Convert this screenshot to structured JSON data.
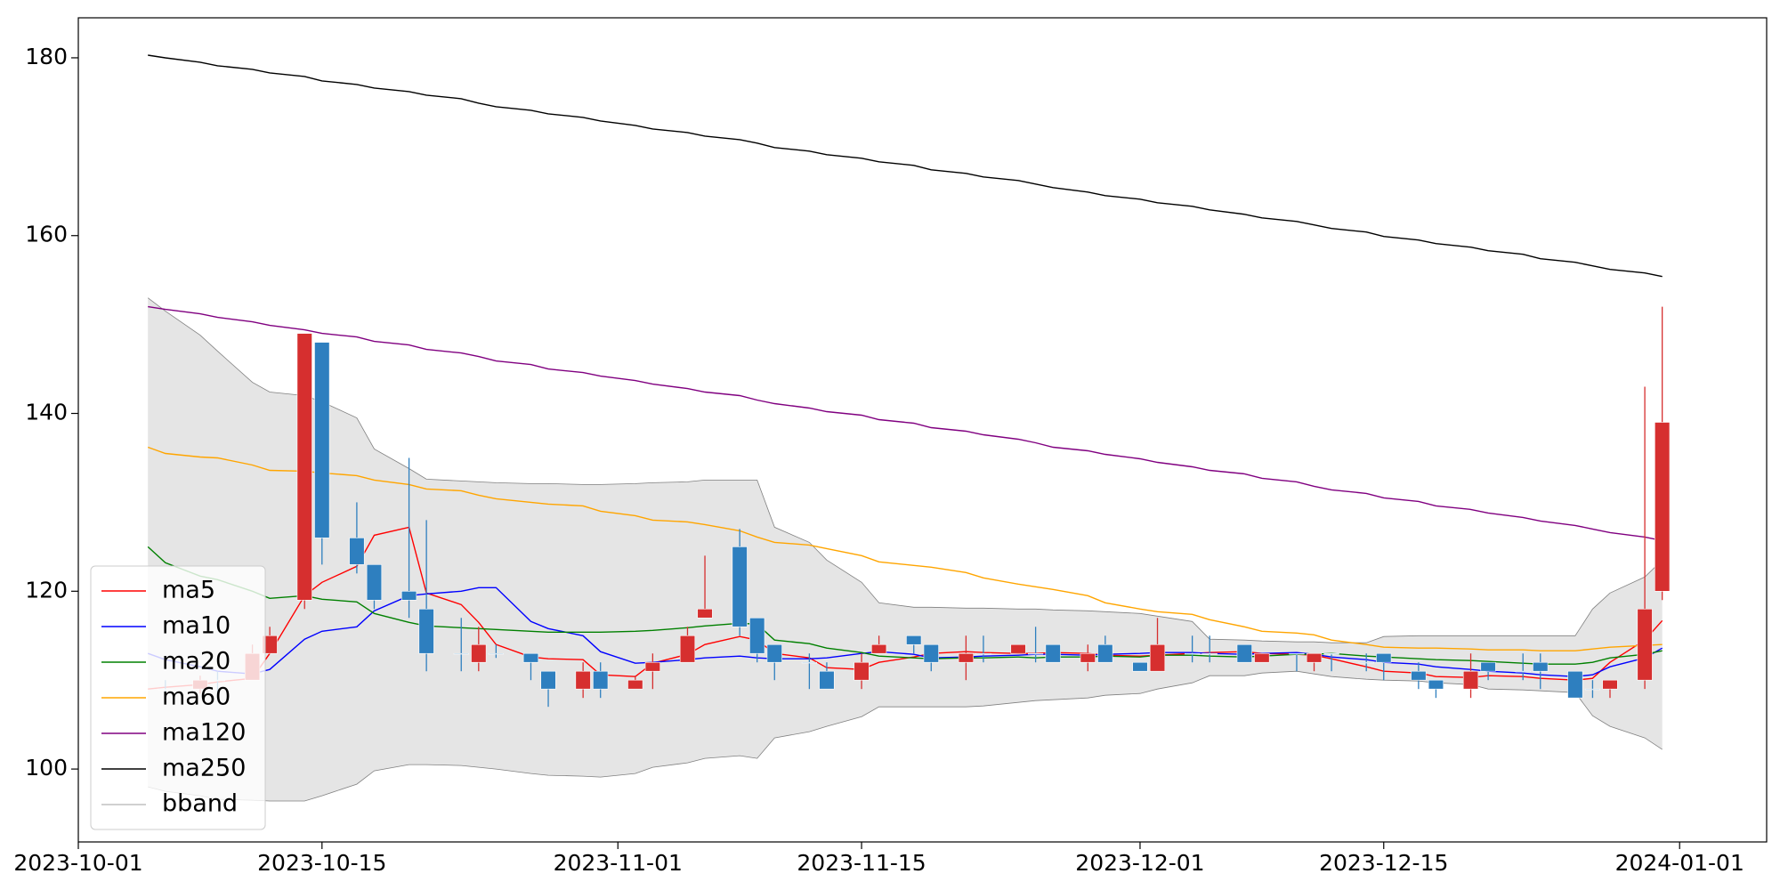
{
  "chart_data": {
    "type": "candlestick",
    "x": [
      "2023-10-05",
      "2023-10-06",
      "2023-10-08",
      "2023-10-09",
      "2023-10-11",
      "2023-10-12",
      "2023-10-14",
      "2023-10-15",
      "2023-10-17",
      "2023-10-18",
      "2023-10-20",
      "2023-10-21",
      "2023-10-23",
      "2023-10-24",
      "2023-10-25",
      "2023-10-27",
      "2023-10-28",
      "2023-10-30",
      "2023-10-31",
      "2023-11-02",
      "2023-11-03",
      "2023-11-05",
      "2023-11-06",
      "2023-11-08",
      "2023-11-09",
      "2023-11-10",
      "2023-11-12",
      "2023-11-13",
      "2023-11-15",
      "2023-11-16",
      "2023-11-18",
      "2023-11-19",
      "2023-11-21",
      "2023-11-22",
      "2023-11-24",
      "2023-11-25",
      "2023-11-26",
      "2023-11-28",
      "2023-11-29",
      "2023-12-01",
      "2023-12-02",
      "2023-12-04",
      "2023-12-05",
      "2023-12-07",
      "2023-12-08",
      "2023-12-10",
      "2023-12-11",
      "2023-12-12",
      "2023-12-14",
      "2023-12-15",
      "2023-12-17",
      "2023-12-18",
      "2023-12-20",
      "2023-12-21",
      "2023-12-23",
      "2023-12-24",
      "2023-12-26",
      "2023-12-27",
      "2023-12-28",
      "2023-12-30",
      "2023-12-31"
    ],
    "open": [
      null,
      109,
      109,
      110,
      110,
      113,
      119,
      148,
      126,
      123,
      120,
      118,
      113,
      112,
      113,
      113,
      111,
      109,
      111,
      109,
      111,
      112,
      117,
      125,
      117,
      114,
      112,
      111,
      110,
      113,
      115,
      114,
      112,
      113,
      113,
      113,
      114,
      112,
      114,
      112,
      111,
      113,
      113,
      114,
      112,
      113,
      112,
      113,
      112,
      113,
      111,
      110,
      109,
      112,
      111,
      112,
      111,
      109,
      109,
      110,
      120
    ],
    "high": [
      null,
      110,
      110.5,
      111,
      114,
      116,
      149,
      148,
      130,
      123,
      135,
      128,
      117,
      116,
      114,
      113,
      111,
      112,
      112,
      110.5,
      113,
      116,
      124,
      127,
      117,
      114,
      113,
      112,
      113,
      115,
      115,
      114,
      115,
      115,
      114,
      116,
      114,
      114,
      115,
      112,
      117,
      115,
      115,
      114,
      113,
      113,
      113,
      113,
      113,
      113,
      112,
      110,
      113,
      112,
      113,
      113,
      111,
      110,
      110,
      143,
      152
    ],
    "low": [
      null,
      108,
      108.5,
      108,
      110,
      113,
      118,
      123,
      122,
      118,
      117,
      111,
      111,
      111,
      112.5,
      110,
      107,
      108,
      108,
      109,
      109,
      112,
      117,
      115,
      112,
      110,
      109,
      109,
      109,
      113,
      113,
      111,
      110,
      112,
      113,
      112,
      112,
      111,
      112,
      111,
      111,
      112,
      112,
      112,
      112,
      111,
      111,
      111,
      111,
      110,
      109,
      108,
      108,
      110,
      110,
      109,
      108,
      108,
      108,
      109,
      119
    ],
    "close": [
      null,
      109,
      110,
      110,
      113,
      115,
      149,
      126,
      123,
      119,
      119,
      113,
      113,
      114,
      113,
      112,
      109,
      111,
      109,
      110,
      112,
      115,
      118,
      116,
      113,
      112,
      112,
      109,
      112,
      114,
      114,
      112,
      113,
      113,
      114,
      113,
      112,
      113,
      112,
      111,
      114,
      113,
      113,
      112,
      113,
      113,
      113,
      113,
      112,
      112,
      110,
      109,
      111,
      111,
      111,
      111,
      108,
      109,
      110,
      118,
      139
    ],
    "up_color": "#d62f2f",
    "down_color": "#2e7fbf",
    "series": [
      {
        "name": "ma5",
        "color": "#ff0000",
        "values": [
          109.0,
          109.2,
          109.5,
          109.8,
          110.2,
          113.0,
          119.5,
          121.0,
          122.8,
          126.3,
          127.2,
          119.8,
          118.5,
          116.5,
          114.0,
          112.6,
          112.4,
          112.3,
          110.6,
          110.4,
          111.9,
          112.9,
          114.0,
          114.9,
          114.5,
          113.0,
          112.5,
          111.4,
          111.2,
          112.0,
          112.6,
          113.0,
          113.2,
          113.1,
          113.0,
          113.0,
          113.1,
          113.0,
          112.8,
          112.7,
          112.8,
          113.0,
          113.1,
          113.2,
          113.0,
          112.9,
          112.8,
          112.4,
          111.5,
          111.0,
          110.8,
          110.4,
          110.3,
          110.5,
          110.4,
          110.2,
          110.0,
          110.2,
          112.0,
          114.5,
          116.7
        ]
      },
      {
        "name": "ma10",
        "color": "#0000ff",
        "values": [
          113.0,
          112.3,
          111.5,
          111.0,
          110.7,
          111.2,
          114.6,
          115.5,
          116.0,
          117.8,
          119.5,
          119.7,
          120.0,
          120.4,
          120.4,
          116.6,
          115.8,
          115.0,
          113.2,
          111.9,
          112.0,
          112.3,
          112.5,
          112.7,
          112.5,
          112.4,
          112.4,
          112.5,
          113.0,
          113.2,
          112.9,
          112.5,
          112.6,
          112.7,
          112.8,
          112.9,
          112.9,
          112.8,
          112.9,
          113.0,
          113.1,
          113.1,
          113.0,
          112.9,
          113.0,
          113.1,
          112.9,
          112.6,
          112.3,
          112.0,
          111.8,
          111.5,
          111.2,
          111.0,
          110.8,
          110.6,
          110.4,
          110.6,
          111.5,
          112.5,
          113.6
        ]
      },
      {
        "name": "ma20",
        "color": "#008000",
        "values": [
          125.0,
          123.2,
          121.7,
          121.3,
          120.0,
          119.2,
          119.5,
          119.1,
          118.8,
          117.5,
          116.5,
          116.1,
          115.9,
          115.8,
          115.7,
          115.5,
          115.4,
          115.4,
          115.4,
          115.5,
          115.6,
          115.9,
          116.1,
          116.4,
          116.3,
          114.5,
          114.1,
          113.6,
          113.1,
          112.7,
          112.5,
          112.4,
          112.5,
          112.5,
          112.6,
          112.5,
          112.6,
          112.6,
          112.7,
          112.6,
          112.8,
          112.8,
          112.7,
          112.6,
          112.7,
          112.9,
          112.9,
          113.0,
          112.7,
          112.6,
          112.4,
          112.3,
          112.2,
          112.1,
          111.9,
          111.8,
          111.8,
          112.0,
          112.5,
          112.9,
          113.3
        ]
      },
      {
        "name": "ma60",
        "color": "#ffa500",
        "values": [
          136.2,
          135.5,
          135.1,
          135.0,
          134.2,
          133.6,
          133.5,
          133.3,
          133.0,
          132.5,
          132.0,
          131.5,
          131.3,
          130.8,
          130.4,
          130.0,
          129.8,
          129.6,
          129.0,
          128.5,
          128.0,
          127.8,
          127.5,
          126.8,
          126.1,
          125.5,
          125.2,
          124.8,
          124.0,
          123.3,
          122.9,
          122.7,
          122.1,
          121.5,
          120.8,
          120.5,
          120.2,
          119.5,
          118.7,
          118.0,
          117.7,
          117.4,
          116.8,
          116.0,
          115.5,
          115.3,
          115.1,
          114.5,
          114.0,
          113.7,
          113.6,
          113.6,
          113.5,
          113.4,
          113.4,
          113.3,
          113.3,
          113.5,
          113.7,
          113.9,
          114.0
        ]
      },
      {
        "name": "ma120",
        "color": "#800080",
        "values": [
          152.0,
          151.7,
          151.2,
          150.8,
          150.3,
          149.9,
          149.4,
          149.0,
          148.6,
          148.1,
          147.7,
          147.2,
          146.8,
          146.4,
          145.9,
          145.5,
          145.0,
          144.6,
          144.2,
          143.7,
          143.3,
          142.8,
          142.4,
          142.0,
          141.5,
          141.1,
          140.6,
          140.2,
          139.8,
          139.3,
          138.9,
          138.4,
          138.0,
          137.6,
          137.1,
          136.7,
          136.2,
          135.8,
          135.4,
          134.9,
          134.5,
          134.0,
          133.6,
          133.2,
          132.7,
          132.3,
          131.8,
          131.4,
          131.0,
          130.5,
          130.1,
          129.6,
          129.2,
          128.8,
          128.3,
          127.9,
          127.4,
          127.0,
          126.6,
          126.1,
          125.7
        ]
      },
      {
        "name": "ma250",
        "color": "#000000",
        "values": [
          180.3,
          180.0,
          179.5,
          179.1,
          178.7,
          178.3,
          177.9,
          177.4,
          177.0,
          176.6,
          176.2,
          175.8,
          175.4,
          174.9,
          174.5,
          174.1,
          173.7,
          173.3,
          172.9,
          172.4,
          172.0,
          171.6,
          171.2,
          170.8,
          170.4,
          169.9,
          169.5,
          169.1,
          168.7,
          168.3,
          167.9,
          167.4,
          167.0,
          166.6,
          166.2,
          165.8,
          165.4,
          164.9,
          164.5,
          164.1,
          163.7,
          163.3,
          162.9,
          162.4,
          162.0,
          161.6,
          161.2,
          160.8,
          160.4,
          159.9,
          159.5,
          159.1,
          158.7,
          158.3,
          157.9,
          157.4,
          157.0,
          156.6,
          156.2,
          155.8,
          155.4
        ]
      }
    ],
    "bband": {
      "name": "bband",
      "color": "#808080",
      "fill": "#e5e5e5",
      "upper": [
        153.0,
        151.5,
        148.8,
        147.0,
        143.5,
        142.4,
        142.0,
        141.3,
        139.5,
        136.0,
        133.8,
        132.6,
        132.4,
        132.3,
        132.2,
        132.1,
        132.1,
        132.0,
        132.0,
        132.1,
        132.2,
        132.3,
        132.5,
        132.5,
        132.5,
        127.2,
        125.5,
        123.5,
        121.0,
        118.7,
        118.2,
        118.2,
        118.1,
        118.1,
        118.0,
        118.0,
        117.9,
        117.8,
        117.7,
        117.5,
        117.2,
        116.6,
        114.6,
        114.5,
        114.4,
        114.3,
        114.3,
        114.2,
        114.2,
        114.9,
        115.0,
        115.0,
        115.0,
        115.0,
        115.0,
        115.0,
        115.0,
        118.0,
        119.8,
        121.6,
        123.5
      ],
      "lower": [
        98.0,
        97.5,
        97.0,
        96.6,
        96.5,
        96.4,
        96.4,
        97.0,
        98.3,
        99.8,
        100.5,
        100.5,
        100.4,
        100.2,
        100.0,
        99.5,
        99.3,
        99.2,
        99.1,
        99.5,
        100.2,
        100.7,
        101.2,
        101.5,
        101.2,
        103.5,
        104.2,
        104.8,
        105.9,
        107.0,
        107.0,
        107.0,
        107.0,
        107.1,
        107.5,
        107.7,
        107.8,
        108.0,
        108.3,
        108.5,
        109.0,
        109.7,
        110.5,
        110.5,
        110.8,
        111.0,
        110.7,
        110.4,
        110.1,
        110.0,
        109.9,
        109.7,
        109.5,
        109.0,
        108.9,
        108.8,
        108.6,
        106.0,
        104.8,
        103.5,
        102.2
      ]
    },
    "xlim": [
      "2023-10-01",
      "2024-01-06"
    ],
    "xticks": [
      "2023-10-01",
      "2023-10-15",
      "2023-11-01",
      "2023-11-15",
      "2023-12-01",
      "2023-12-15",
      "2024-01-01"
    ],
    "ylim": [
      91.8,
      184.5
    ],
    "yticks": [
      100,
      120,
      140,
      160,
      180
    ],
    "legend": "lower left"
  }
}
